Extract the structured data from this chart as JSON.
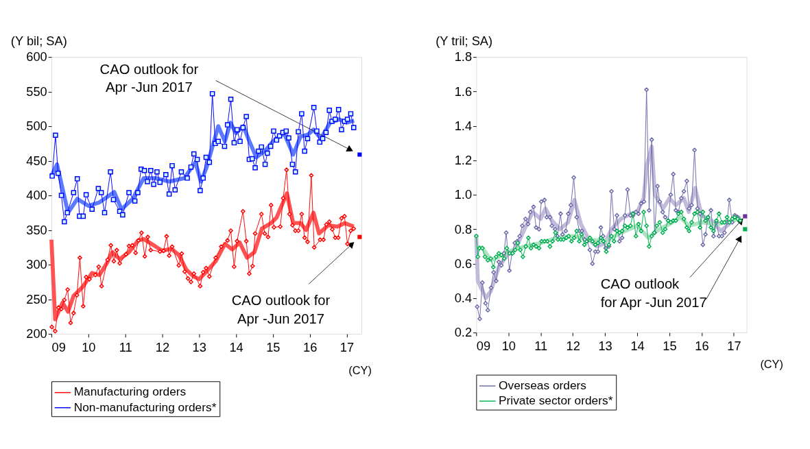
{
  "chart_data": [
    {
      "type": "line",
      "ylabel": "(Y bil; SA)",
      "xlabel": "(CY)",
      "xlim": [
        2009,
        2017.4
      ],
      "ylim": [
        200,
        600
      ],
      "xticks": [
        {
          "value": 2009,
          "label": "09"
        },
        {
          "value": 2010,
          "label": "10"
        },
        {
          "value": 2011,
          "label": "11"
        },
        {
          "value": 2012,
          "label": "12"
        },
        {
          "value": 2013,
          "label": "13"
        },
        {
          "value": 2014,
          "label": "14"
        },
        {
          "value": 2015,
          "label": "15"
        },
        {
          "value": 2016,
          "label": "16"
        },
        {
          "value": 2017,
          "label": "17"
        }
      ],
      "yticks": [
        200,
        250,
        300,
        350,
        400,
        450,
        500,
        550,
        600
      ],
      "grid": false,
      "legend": "bottom",
      "annotations": [
        "CAO outlook for\nApr -Jun 2017",
        "CAO outlook for\nApr -Jun 2017"
      ],
      "series": [
        {
          "marker": "none",
          "color": "#4a6cff",
          "x": [
            2009.0,
            2009.15,
            2009.45,
            2009.7,
            2010.0,
            2010.3,
            2010.7,
            2010.9,
            2011.2,
            2011.5,
            2011.8,
            2012.2,
            2012.6,
            2012.9,
            2013.05,
            2013.2,
            2013.52,
            2013.7,
            2013.85,
            2014.0,
            2014.2,
            2014.35,
            2014.55,
            2014.8,
            2015.0,
            2015.3,
            2015.55,
            2015.75,
            2015.95,
            2016.1,
            2016.3,
            2016.55,
            2016.8,
            2017.0,
            2017.2
          ],
          "values": [
            428,
            445,
            375,
            395,
            385,
            390,
            405,
            380,
            395,
            425,
            425,
            420,
            425,
            448,
            420,
            440,
            500,
            478,
            505,
            490,
            500,
            480,
            455,
            465,
            478,
            490,
            459,
            485,
            488,
            495,
            482,
            505,
            510,
            505,
            508
          ]
        },
        {
          "marker": "none",
          "color": "#ff4040",
          "x": [
            2009.0,
            2009.1,
            2009.3,
            2009.45,
            2009.6,
            2009.85,
            2010.1,
            2010.3,
            2010.5,
            2010.65,
            2010.85,
            2011.1,
            2011.35,
            2011.5,
            2011.8,
            2012.0,
            2012.25,
            2012.45,
            2012.65,
            2012.85,
            2013.0,
            2013.2,
            2013.45,
            2013.7,
            2013.9,
            2014.1,
            2014.3,
            2014.5,
            2014.7,
            2014.95,
            2015.1,
            2015.38,
            2015.55,
            2015.75,
            2015.9,
            2016.1,
            2016.25,
            2016.5,
            2016.75,
            2016.95,
            2017.19
          ],
          "values": [
            336,
            221,
            245,
            232,
            255,
            268,
            288,
            285,
            302,
            318,
            308,
            318,
            335,
            337,
            327,
            320,
            323,
            314,
            293,
            283,
            279,
            290,
            305,
            330,
            322,
            332,
            310,
            318,
            352,
            360,
            368,
            403,
            360,
            360,
            350,
            375,
            345,
            357,
            355,
            360,
            355
          ]
        },
        {
          "name": "Manufacturing orders",
          "marker": "diamond",
          "color": "#ff0000",
          "x": [
            2009.01,
            2009.1,
            2009.19,
            2009.27,
            2009.35,
            2009.44,
            2009.52,
            2009.6,
            2009.69,
            2009.77,
            2009.86,
            2009.94,
            2010.03,
            2010.19,
            2010.28,
            2010.36,
            2010.52,
            2010.61,
            2010.69,
            2010.77,
            2010.85,
            2011.02,
            2011.1,
            2011.19,
            2011.28,
            2011.36,
            2011.44,
            2011.53,
            2011.61,
            2011.69,
            2011.94,
            2012.04,
            2012.12,
            2012.19,
            2012.27,
            2012.45,
            2012.53,
            2012.61,
            2012.7,
            2012.78,
            2012.86,
            2013.03,
            2013.11,
            2013.19,
            2013.28,
            2013.45,
            2013.6,
            2013.77,
            2013.86,
            2013.95,
            2014.03,
            2014.19,
            2014.28,
            2014.36,
            2014.45,
            2014.52,
            2014.69,
            2014.78,
            2014.87,
            2014.95,
            2015.03,
            2015.2,
            2015.28,
            2015.37,
            2015.45,
            2015.53,
            2015.61,
            2015.69,
            2015.78,
            2015.86,
            2015.94,
            2016.04,
            2016.12,
            2016.28,
            2016.37,
            2016.45,
            2016.53,
            2016.61,
            2016.69,
            2016.77,
            2016.86,
            2016.94,
            2017.02,
            2017.11,
            2017.19
          ],
          "values": [
            210,
            204,
            238,
            236,
            249,
            264,
            216,
            230,
            256,
            310,
            240,
            282,
            279,
            285,
            297,
            269,
            307,
            328,
            305,
            321,
            302,
            315,
            327,
            328,
            317,
            335,
            346,
            312,
            340,
            321,
            319,
            320,
            341,
            313,
            326,
            299,
            316,
            290,
            280,
            275,
            287,
            269,
            289,
            295,
            283,
            310,
            326,
            335,
            349,
            297,
            334,
            377,
            334,
            287,
            298,
            345,
            373,
            345,
            340,
            386,
            354,
            355,
            396,
            437,
            373,
            357,
            349,
            349,
            373,
            339,
            333,
            429,
            325,
            336,
            336,
            358,
            362,
            351,
            339,
            339,
            367,
            370,
            330,
            349,
            352
          ]
        },
        {
          "name": "Non-manufacturing orders*",
          "marker": "square",
          "color": "#0000ff",
          "x": [
            2009.02,
            2009.11,
            2009.18,
            2009.27,
            2009.35,
            2009.43,
            2009.6,
            2009.7,
            2009.76,
            2009.86,
            2009.94,
            2010.1,
            2010.27,
            2010.35,
            2010.44,
            2010.6,
            2010.68,
            2010.85,
            2010.93,
            2011.1,
            2011.26,
            2011.34,
            2011.43,
            2011.52,
            2011.6,
            2011.69,
            2011.77,
            2011.86,
            2011.94,
            2012.1,
            2012.19,
            2012.27,
            2012.35,
            2012.52,
            2012.68,
            2012.78,
            2012.86,
            2012.95,
            2013.03,
            2013.11,
            2013.19,
            2013.28,
            2013.36,
            2013.44,
            2013.52,
            2013.69,
            2013.77,
            2013.86,
            2013.95,
            2014.03,
            2014.11,
            2014.19,
            2014.28,
            2014.36,
            2014.44,
            2014.52,
            2014.61,
            2014.69,
            2014.79,
            2014.85,
            2014.94,
            2015.02,
            2015.1,
            2015.18,
            2015.27,
            2015.36,
            2015.43,
            2015.53,
            2015.61,
            2015.69,
            2015.78,
            2015.86,
            2015.94,
            2016.11,
            2016.19,
            2016.27,
            2016.35,
            2016.44,
            2016.53,
            2016.6,
            2016.69,
            2016.78,
            2016.86,
            2016.94,
            2017.02,
            2017.11,
            2017.19
          ],
          "values": [
            428,
            487,
            432,
            400,
            362,
            375,
            404,
            424,
            370,
            370,
            401,
            380,
            410,
            404,
            375,
            434,
            394,
            377,
            372,
            404,
            392,
            404,
            438,
            436,
            420,
            436,
            416,
            434,
            419,
            430,
            402,
            443,
            408,
            434,
            425,
            441,
            460,
            452,
            407,
            425,
            455,
            448,
            547,
            475,
            478,
            471,
            502,
            539,
            476,
            495,
            478,
            498,
            514,
            452,
            453,
            440,
            464,
            470,
            445,
            461,
            471,
            493,
            480,
            486,
            491,
            493,
            483,
            445,
            434,
            492,
            518,
            464,
            482,
            527,
            493,
            477,
            482,
            491,
            523,
            507,
            510,
            524,
            495,
            507,
            510,
            518,
            498
          ]
        },
        {
          "type": "scatter",
          "marker": "square",
          "color": "#0000ff",
          "x": [
            2017.35
          ],
          "values": [
            459
          ]
        },
        {
          "type": "scatter",
          "marker": "square",
          "color": "#ff0000",
          "x": [
            2017.35
          ],
          "values": [
            340
          ]
        }
      ]
    },
    {
      "type": "line",
      "ylabel": "(Y tril; SA)",
      "xlabel": "(CY)",
      "xlim": [
        2009,
        2017.4
      ],
      "ylim": [
        0.2,
        1.8
      ],
      "xticks": [
        {
          "value": 2009,
          "label": "09"
        },
        {
          "value": 2010,
          "label": "10"
        },
        {
          "value": 2011,
          "label": "11"
        },
        {
          "value": 2012,
          "label": "12"
        },
        {
          "value": 2013,
          "label": "13"
        },
        {
          "value": 2014,
          "label": "14"
        },
        {
          "value": 2015,
          "label": "15"
        },
        {
          "value": 2016,
          "label": "16"
        },
        {
          "value": 2017,
          "label": "17"
        }
      ],
      "yticks": [
        0.2,
        0.4,
        0.6,
        0.8,
        {
          "value": 1,
          "label": "1.0"
        },
        1.2,
        1.4,
        1.6,
        1.8
      ],
      "grid": false,
      "legend": "bottom",
      "annotations": [
        {
          "text": "CAO outlook\nfor Apr -Jun 2017",
          "x": 2017.35,
          "y": 0.875
        }
      ],
      "series": [
        {
          "marker": "none",
          "color": "#bcb2d6",
          "x": [
            2009.0,
            2009.05,
            2009.3,
            2009.45,
            2009.7,
            2010.0,
            2010.2,
            2010.5,
            2010.75,
            2011.0,
            2011.15,
            2011.35,
            2011.6,
            2011.85,
            2012.05,
            2012.25,
            2012.5,
            2012.75,
            2013.0,
            2013.2,
            2013.5,
            2013.8,
            2014.0,
            2014.2,
            2014.3,
            2014.45,
            2014.55,
            2014.8,
            2015.0,
            2015.2,
            2015.45,
            2015.6,
            2015.8,
            2016.0,
            2016.3,
            2016.6,
            2016.85,
            2017.05,
            2017.2
          ],
          "values": [
            0.77,
            0.5,
            0.4,
            0.44,
            0.58,
            0.66,
            0.68,
            0.8,
            0.9,
            0.86,
            0.92,
            0.85,
            0.8,
            0.84,
            0.97,
            0.83,
            0.74,
            0.7,
            0.72,
            0.8,
            0.86,
            0.89,
            0.9,
            0.98,
            1.17,
            1.28,
            1.0,
            0.92,
            0.98,
            0.94,
            0.98,
            0.9,
            1.04,
            0.88,
            0.85,
            0.79,
            0.83,
            0.88,
            0.86
          ]
        },
        {
          "marker": "none",
          "color": "#a3dfb8",
          "x": [
            2009.0,
            2009.2,
            2009.45,
            2009.7,
            2010.0,
            2010.5,
            2011.0,
            2011.5,
            2012.0,
            2012.5,
            2013.0,
            2013.5,
            2014.0,
            2014.35,
            2014.6,
            2015.0,
            2015.35,
            2015.6,
            2016.0,
            2016.5,
            2017.2
          ],
          "values": [
            0.7,
            0.69,
            0.62,
            0.64,
            0.67,
            0.7,
            0.72,
            0.75,
            0.76,
            0.74,
            0.73,
            0.78,
            0.82,
            0.75,
            0.79,
            0.83,
            0.87,
            0.82,
            0.84,
            0.83,
            0.86
          ]
        },
        {
          "name": "Overseas orders",
          "marker": "diamond",
          "color": "#6b6baa",
          "x": [
            2009.03,
            2009.11,
            2009.19,
            2009.29,
            2009.36,
            2009.46,
            2009.54,
            2009.62,
            2009.7,
            2009.78,
            2009.86,
            2009.93,
            2010.03,
            2010.11,
            2010.2,
            2010.27,
            2010.35,
            2010.43,
            2010.53,
            2010.61,
            2010.68,
            2010.78,
            2010.86,
            2010.95,
            2011.02,
            2011.12,
            2011.19,
            2011.29,
            2011.35,
            2011.45,
            2011.52,
            2011.62,
            2011.68,
            2011.78,
            2011.86,
            2011.94,
            2012.03,
            2012.12,
            2012.2,
            2012.28,
            2012.37,
            2012.45,
            2012.53,
            2012.61,
            2012.7,
            2012.78,
            2012.87,
            2012.94,
            2013.02,
            2013.12,
            2013.2,
            2013.29,
            2013.37,
            2013.45,
            2013.53,
            2013.62,
            2013.7,
            2013.79,
            2013.87,
            2013.96,
            2014.04,
            2014.12,
            2014.21,
            2014.29,
            2014.37,
            2014.45,
            2014.54,
            2014.63,
            2014.7,
            2014.79,
            2014.87,
            2014.96,
            2015.04,
            2015.12,
            2015.2,
            2015.28,
            2015.37,
            2015.45,
            2015.54,
            2015.61,
            2015.69,
            2015.78,
            2015.87,
            2015.95,
            2016.04,
            2016.12,
            2016.2,
            2016.29,
            2016.37,
            2016.46,
            2016.54,
            2016.63,
            2016.71,
            2016.79,
            2016.86,
            2016.95,
            2017.03,
            2017.12,
            2017.2
          ],
          "values": [
            0.35,
            0.28,
            0.49,
            0.37,
            0.33,
            0.46,
            0.55,
            0.5,
            0.61,
            0.59,
            0.66,
            0.78,
            0.56,
            0.66,
            0.72,
            0.73,
            0.76,
            0.82,
            0.86,
            0.83,
            0.9,
            0.93,
            0.81,
            0.8,
            0.96,
            0.97,
            0.87,
            0.87,
            0.82,
            0.8,
            0.76,
            0.89,
            0.77,
            0.79,
            0.89,
            0.94,
            1.1,
            0.87,
            0.79,
            0.79,
            0.74,
            0.73,
            0.68,
            0.6,
            0.67,
            0.67,
            0.81,
            0.76,
            0.69,
            0.7,
            1.02,
            0.8,
            0.88,
            0.73,
            0.75,
            0.88,
            1.03,
            0.88,
            0.88,
            0.9,
            0.89,
            0.95,
            0.96,
            1.61,
            0.91,
            1.32,
            0.78,
            1.05,
            0.96,
            0.9,
            0.87,
            0.85,
            1.0,
            1.12,
            0.91,
            0.9,
            0.98,
            1.02,
            1.08,
            0.92,
            0.94,
            1.26,
            0.92,
            0.89,
            0.71,
            0.77,
            0.87,
            0.91,
            0.76,
            0.84,
            0.76,
            0.76,
            0.78,
            0.84,
            0.97,
            0.84,
            0.88,
            0.87,
            0.85
          ]
        },
        {
          "name": "Private sector orders*",
          "marker": "diamond",
          "color": "#00b050",
          "x": [
            2009.0,
            2009.05,
            2009.1,
            2009.19,
            2009.27,
            2009.36,
            2009.45,
            2009.53,
            2009.62,
            2009.7,
            2009.78,
            2009.87,
            2009.95,
            2010.04,
            2010.13,
            2010.21,
            2010.29,
            2010.37,
            2010.45,
            2010.54,
            2010.62,
            2010.7,
            2010.78,
            2010.86,
            2010.95,
            2011.03,
            2011.12,
            2011.21,
            2011.29,
            2011.37,
            2011.46,
            2011.54,
            2011.63,
            2011.71,
            2011.8,
            2011.87,
            2011.96,
            2012.04,
            2012.12,
            2012.2,
            2012.27,
            2012.36,
            2012.43,
            2012.53,
            2012.61,
            2012.7,
            2012.78,
            2012.87,
            2012.95,
            2013.04,
            2013.12,
            2013.2,
            2013.28,
            2013.37,
            2013.45,
            2013.53,
            2013.62,
            2013.7,
            2013.79,
            2013.87,
            2013.96,
            2014.04,
            2014.12,
            2014.2,
            2014.29,
            2014.37,
            2014.45,
            2014.53,
            2014.61,
            2014.7,
            2014.79,
            2014.87,
            2014.96,
            2015.04,
            2015.12,
            2015.2,
            2015.28,
            2015.37,
            2015.45,
            2015.54,
            2015.61,
            2015.69,
            2015.78,
            2015.87,
            2015.95,
            2016.04,
            2016.12,
            2016.2,
            2016.29,
            2016.37,
            2016.46,
            2016.54,
            2016.63,
            2016.71,
            2016.79,
            2016.86,
            2016.95,
            2017.03,
            2017.12,
            2017.2
          ],
          "values": [
            0.76,
            0.64,
            0.69,
            0.69,
            0.64,
            0.62,
            0.63,
            0.58,
            0.64,
            0.66,
            0.65,
            0.63,
            0.69,
            0.66,
            0.66,
            0.68,
            0.72,
            0.68,
            0.64,
            0.7,
            0.75,
            0.69,
            0.71,
            0.7,
            0.69,
            0.73,
            0.73,
            0.73,
            0.7,
            0.73,
            0.78,
            0.74,
            0.74,
            0.74,
            0.75,
            0.76,
            0.73,
            0.75,
            0.79,
            0.73,
            0.77,
            0.71,
            0.73,
            0.75,
            0.73,
            0.71,
            0.72,
            0.75,
            0.73,
            0.67,
            0.71,
            0.76,
            0.73,
            0.79,
            0.78,
            0.79,
            0.82,
            0.81,
            0.82,
            0.89,
            0.76,
            0.83,
            0.79,
            0.9,
            0.82,
            0.7,
            0.76,
            0.78,
            0.82,
            0.84,
            0.78,
            0.8,
            0.85,
            0.84,
            0.85,
            0.85,
            0.89,
            0.9,
            0.86,
            0.81,
            0.79,
            0.84,
            0.89,
            0.9,
            0.81,
            0.9,
            0.85,
            0.87,
            0.81,
            0.79,
            0.85,
            0.89,
            0.84,
            0.84,
            0.87,
            0.84,
            0.86,
            0.87,
            0.86,
            0.85
          ]
        },
        {
          "type": "scatter",
          "marker": "square",
          "color": "#7030a0",
          "x": [
            2017.35
          ],
          "values": [
            0.875
          ]
        },
        {
          "type": "scatter",
          "marker": "square",
          "color": "#00b050",
          "x": [
            2017.35
          ],
          "values": [
            0.8
          ]
        }
      ]
    }
  ]
}
